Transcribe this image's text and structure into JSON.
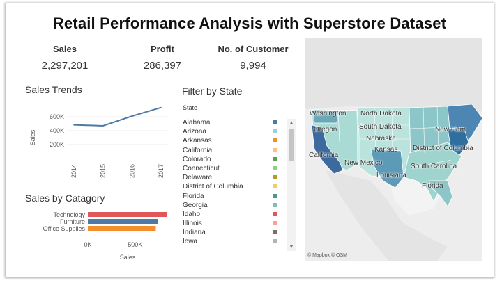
{
  "title": "Retail Performance Analysis with Superstore Dataset",
  "kpis": [
    {
      "label": "Sales",
      "value": "2,297,201"
    },
    {
      "label": "Profit",
      "value": "286,397"
    },
    {
      "label": "No. of Customer",
      "value": "9,994"
    }
  ],
  "sales_trends": {
    "title": "Sales Trends",
    "chart_data": {
      "type": "line",
      "title": "Sales Trends",
      "ylabel": "Sales",
      "x": [
        "2014",
        "2015",
        "2016",
        "2017"
      ],
      "values": [
        484000,
        470000,
        609000,
        733000
      ],
      "yticks": [
        "200K",
        "400K",
        "600K"
      ],
      "ylim": [
        0,
        800000
      ],
      "color": "#4e79a7"
    }
  },
  "sales_by_category": {
    "title": "Sales by Catagory",
    "chart_data": {
      "type": "bar",
      "orientation": "horizontal",
      "title": "Sales by Catagory",
      "xlabel": "Sales",
      "categories": [
        "Technology",
        "Furniture",
        "Office Supplies"
      ],
      "values": [
        836000,
        742000,
        719000
      ],
      "colors": [
        "#e15759",
        "#4e79a7",
        "#f28e2b"
      ],
      "xticks": [
        "0K",
        "500K"
      ],
      "xlim": [
        0,
        900000
      ]
    }
  },
  "filter": {
    "title": "Filter by State",
    "column_header": "State",
    "states": [
      {
        "name": "Alabama",
        "color": "#4e79a7"
      },
      {
        "name": "Arizona",
        "color": "#a0cbe8"
      },
      {
        "name": "Arkansas",
        "color": "#f28e2b"
      },
      {
        "name": "California",
        "color": "#ffbe7d"
      },
      {
        "name": "Colorado",
        "color": "#59a14f"
      },
      {
        "name": "Connecticut",
        "color": "#8cd17d"
      },
      {
        "name": "Delaware",
        "color": "#b6992d"
      },
      {
        "name": "District of Columbia",
        "color": "#f1ce63"
      },
      {
        "name": "Florida",
        "color": "#499894"
      },
      {
        "name": "Georgia",
        "color": "#86bcb6"
      },
      {
        "name": "Idaho",
        "color": "#e15759"
      },
      {
        "name": "Illinois",
        "color": "#ff9d9a"
      },
      {
        "name": "Indiana",
        "color": "#79706e"
      },
      {
        "name": "Iowa",
        "color": "#bab0ac"
      }
    ]
  },
  "map": {
    "labels": [
      "Washington",
      "North Dakota",
      "Oregon",
      "South Dakota",
      "Nebraska",
      "New Ham",
      "Kansas",
      "District of Columbia",
      "California",
      "New Mexico",
      "South Carolina",
      "Louisiana",
      "Florida"
    ],
    "credit": "© Mapbox © OSM"
  }
}
